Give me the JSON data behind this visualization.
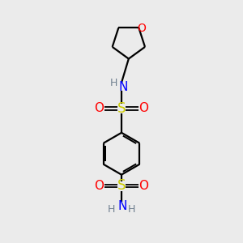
{
  "background_color": "#ebebeb",
  "bond_color": "#000000",
  "nitrogen_color": "#0000ff",
  "oxygen_color": "#ff0000",
  "sulfur_color": "#cccc00",
  "hydrogen_color": "#708090",
  "figsize": [
    3.0,
    3.0
  ],
  "dpi": 100,
  "xlim": [
    0,
    10
  ],
  "ylim": [
    0,
    10
  ]
}
